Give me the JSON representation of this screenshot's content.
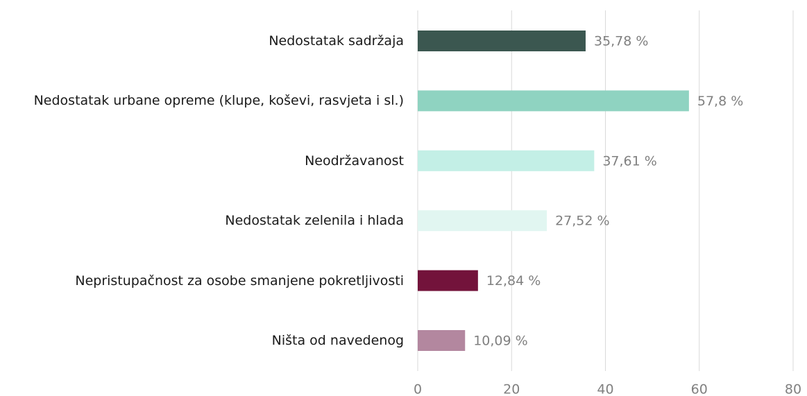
{
  "chart_data": {
    "type": "bar",
    "orientation": "horizontal",
    "categories": [
      "Nedostatak sadržaja",
      "Nedostatak urbane opreme (klupe, koševi, rasvjeta i sl.)",
      "Neodržavanost",
      "Nedostatak zelenila i hlada",
      "Nepristupačnost za osobe smanjene pokretljivosti",
      "Ništa od navedenog"
    ],
    "values": [
      35.78,
      57.8,
      37.61,
      27.52,
      12.84,
      10.09
    ],
    "value_labels": [
      "35,78 %",
      "57,8 %",
      "37,61 %",
      "27,52 %",
      "12,84 %",
      "10,09 %"
    ],
    "colors": [
      "#3b5750",
      "#8fd3c1",
      "#c3efe6",
      "#e1f6f1",
      "#73133b",
      "#b3879f"
    ],
    "xlim": [
      0,
      80
    ],
    "xticks": [
      0,
      20,
      40,
      60,
      80
    ],
    "grid": true
  }
}
